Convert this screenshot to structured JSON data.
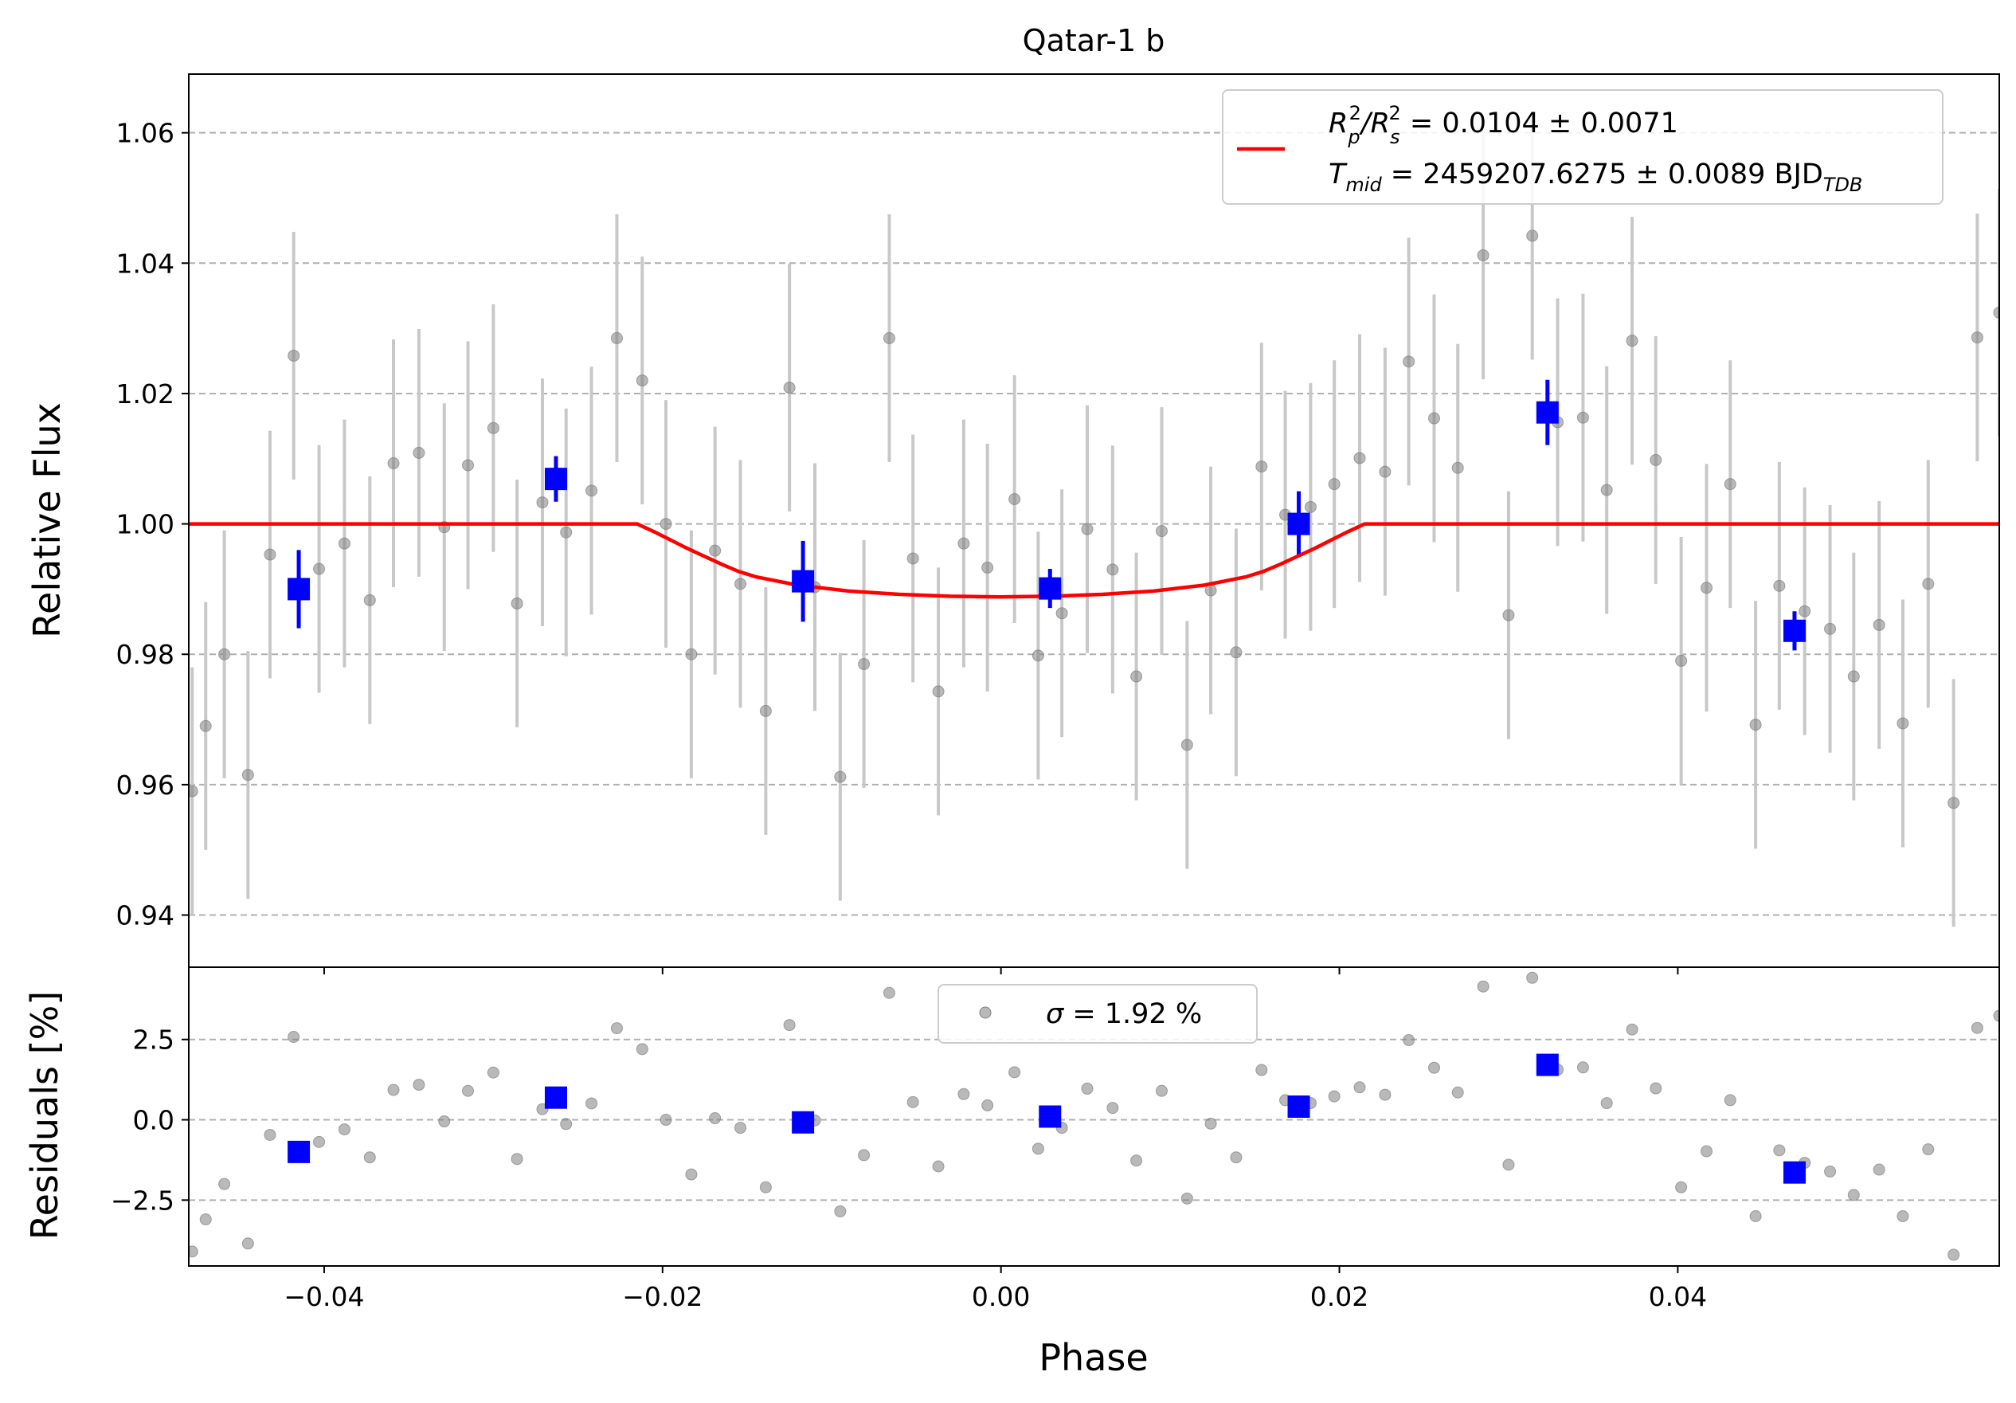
{
  "chart_data": [
    {
      "type": "scatter",
      "panel": "flux",
      "title": "Qatar-1 b",
      "xlabel": "",
      "ylabel": "Relative Flux",
      "xlim": [
        -0.048,
        0.059
      ],
      "ylim": [
        0.932,
        1.069
      ],
      "yticks": [
        0.94,
        0.96,
        0.98,
        1.0,
        1.02,
        1.04,
        1.06
      ],
      "ytick_labels": [
        "0.94",
        "0.96",
        "0.98",
        "1.00",
        "1.02",
        "1.04",
        "1.06"
      ],
      "grid": "horizontal dashed",
      "legend": {
        "placement": "top-right",
        "line_color": "#ff0000",
        "line1_text": [
          "R",
          "p",
          "2",
          "/R",
          "s",
          "2",
          " = 0.0104 ± 0.0071"
        ],
        "line2_text": [
          "T",
          "mid",
          " = 2459207.6275 ± 0.0089 BJD",
          "TDB"
        ]
      },
      "colors": {
        "raw": "#808080",
        "raw_err": "#c8c8c8",
        "binned": "#0000ff",
        "model": "#ff0000"
      },
      "raw": [
        [
          -0.0478,
          0.959,
          0.019
        ],
        [
          -0.047,
          0.969,
          0.019
        ],
        [
          -0.0459,
          0.98,
          0.019
        ],
        [
          -0.0445,
          0.9615,
          0.019
        ],
        [
          -0.0432,
          0.9953,
          0.019
        ],
        [
          -0.0418,
          1.0258,
          0.019
        ],
        [
          -0.0403,
          0.9931,
          0.019
        ],
        [
          -0.0388,
          0.997,
          0.019
        ],
        [
          -0.0373,
          0.9883,
          0.019
        ],
        [
          -0.0359,
          1.0093,
          0.019
        ],
        [
          -0.0344,
          1.0109,
          0.019
        ],
        [
          -0.0329,
          0.9995,
          0.019
        ],
        [
          -0.0315,
          1.009,
          0.019
        ],
        [
          -0.03,
          1.0147,
          0.019
        ],
        [
          -0.0286,
          0.9878,
          0.019
        ],
        [
          -0.0271,
          1.0033,
          0.019
        ],
        [
          -0.0257,
          0.9987,
          0.019
        ],
        [
          -0.0242,
          1.0051,
          0.019
        ],
        [
          -0.0227,
          1.0285,
          0.019
        ],
        [
          -0.0212,
          1.022,
          0.019
        ],
        [
          -0.0198,
          1.0,
          0.019
        ],
        [
          -0.0183,
          0.98,
          0.019
        ],
        [
          -0.0169,
          0.9959,
          0.019
        ],
        [
          -0.0154,
          0.9908,
          0.019
        ],
        [
          -0.0139,
          0.9713,
          0.019
        ],
        [
          -0.0125,
          1.0209,
          0.019
        ],
        [
          -0.011,
          0.9903,
          0.019
        ],
        [
          -0.0095,
          0.9612,
          0.019
        ],
        [
          -0.0081,
          0.9785,
          0.019
        ],
        [
          -0.0066,
          1.0285,
          0.019
        ],
        [
          -0.0052,
          0.9947,
          0.019
        ],
        [
          -0.0037,
          0.9743,
          0.019
        ],
        [
          -0.0022,
          0.997,
          0.019
        ],
        [
          -0.0008,
          0.9933,
          0.019
        ],
        [
          0.0008,
          1.0038,
          0.019
        ],
        [
          0.0022,
          0.9798,
          0.019
        ],
        [
          0.0036,
          0.9863,
          0.019
        ],
        [
          0.0051,
          0.9992,
          0.019
        ],
        [
          0.0066,
          0.993,
          0.019
        ],
        [
          0.008,
          0.9766,
          0.019
        ],
        [
          0.0095,
          0.9989,
          0.019
        ],
        [
          0.011,
          0.9661,
          0.019
        ],
        [
          0.0124,
          0.9898,
          0.019
        ],
        [
          0.0139,
          0.9803,
          0.019
        ],
        [
          0.0154,
          1.0088,
          0.019
        ],
        [
          0.0168,
          1.0014,
          0.019
        ],
        [
          0.0183,
          1.0026,
          0.019
        ],
        [
          0.0197,
          1.0061,
          0.019
        ],
        [
          0.0212,
          1.0101,
          0.019
        ],
        [
          0.0227,
          1.008,
          0.019
        ],
        [
          0.0241,
          1.0249,
          0.019
        ],
        [
          0.0256,
          1.0162,
          0.019
        ],
        [
          0.027,
          1.0086,
          0.019
        ],
        [
          0.0285,
          1.0412,
          0.019
        ],
        [
          0.03,
          0.986,
          0.019
        ],
        [
          0.0314,
          1.0442,
          0.019
        ],
        [
          0.0329,
          1.0156,
          0.019
        ],
        [
          0.0344,
          1.0163,
          0.019
        ],
        [
          0.0358,
          1.0052,
          0.019
        ],
        [
          0.0373,
          1.0281,
          0.019
        ],
        [
          0.0387,
          1.0098,
          0.019
        ],
        [
          0.0402,
          0.979,
          0.019
        ],
        [
          0.0417,
          0.9902,
          0.019
        ],
        [
          0.0431,
          1.0061,
          0.019
        ],
        [
          0.0446,
          0.9692,
          0.019
        ],
        [
          0.046,
          0.9905,
          0.019
        ],
        [
          0.0475,
          0.9866,
          0.019
        ],
        [
          0.049,
          0.9839,
          0.019
        ],
        [
          0.0504,
          0.9766,
          0.019
        ],
        [
          0.0519,
          0.9845,
          0.019
        ],
        [
          0.0533,
          0.9694,
          0.019
        ],
        [
          0.0548,
          0.9908,
          0.019
        ],
        [
          0.0563,
          0.9572,
          0.019
        ],
        [
          0.0577,
          1.0286,
          0.019
        ],
        [
          0.059,
          1.0324,
          0.019
        ]
      ],
      "binned": [
        [
          -0.0415,
          0.99,
          0.006
        ],
        [
          -0.0263,
          1.0069,
          0.0035
        ],
        [
          -0.0117,
          0.9912,
          0.0062
        ],
        [
          0.0029,
          0.9901,
          0.003
        ],
        [
          0.0176,
          1.0,
          0.005
        ],
        [
          0.0323,
          1.0171,
          0.005
        ],
        [
          0.0469,
          0.9836,
          0.003
        ]
      ],
      "model": [
        [
          -0.048,
          1.0
        ],
        [
          -0.0215,
          1.0
        ],
        [
          -0.0205,
          0.9988
        ],
        [
          -0.0195,
          0.9975
        ],
        [
          -0.0185,
          0.9962
        ],
        [
          -0.0175,
          0.995
        ],
        [
          -0.0165,
          0.9938
        ],
        [
          -0.0155,
          0.9927
        ],
        [
          -0.0145,
          0.9919
        ],
        [
          -0.012,
          0.9906
        ],
        [
          -0.009,
          0.9897
        ],
        [
          -0.006,
          0.9892
        ],
        [
          -0.003,
          0.9889
        ],
        [
          0.0,
          0.9888
        ],
        [
          0.003,
          0.9889
        ],
        [
          0.006,
          0.9892
        ],
        [
          0.009,
          0.9897
        ],
        [
          0.012,
          0.9906
        ],
        [
          0.0145,
          0.9919
        ],
        [
          0.0155,
          0.9927
        ],
        [
          0.0165,
          0.9938
        ],
        [
          0.0175,
          0.995
        ],
        [
          0.0185,
          0.9962
        ],
        [
          0.0195,
          0.9975
        ],
        [
          0.0205,
          0.9988
        ],
        [
          0.0215,
          1.0
        ],
        [
          0.059,
          1.0
        ]
      ]
    },
    {
      "type": "scatter",
      "panel": "residuals",
      "xlabel": "Phase",
      "ylabel": "Residuals [%]",
      "xlim": [
        -0.048,
        0.059
      ],
      "ylim": [
        -4.55,
        4.75
      ],
      "xticks": [
        -0.04,
        -0.02,
        0.0,
        0.02,
        0.04
      ],
      "xtick_labels": [
        "−0.04",
        "−0.02",
        "0.00",
        "0.02",
        "0.04"
      ],
      "yticks": [
        -2.5,
        0.0,
        2.5
      ],
      "ytick_labels": [
        "−2.5",
        "0.0",
        "2.5"
      ],
      "grid": "horizontal dashed",
      "legend": {
        "placement": "top-center",
        "text": [
          "σ",
          " = 1.92 %"
        ]
      },
      "raw": [
        [
          -0.0478,
          -4.1
        ],
        [
          -0.047,
          -3.1
        ],
        [
          -0.0459,
          -2.0
        ],
        [
          -0.0445,
          -3.85
        ],
        [
          -0.0432,
          -0.47
        ],
        [
          -0.0418,
          2.58
        ],
        [
          -0.0403,
          -0.69
        ],
        [
          -0.0388,
          -0.3
        ],
        [
          -0.0373,
          -1.17
        ],
        [
          -0.0359,
          0.93
        ],
        [
          -0.0344,
          1.09
        ],
        [
          -0.0329,
          -0.05
        ],
        [
          -0.0315,
          0.9
        ],
        [
          -0.03,
          1.47
        ],
        [
          -0.0286,
          -1.22
        ],
        [
          -0.0271,
          0.33
        ],
        [
          -0.0257,
          -0.13
        ],
        [
          -0.0242,
          0.51
        ],
        [
          -0.0227,
          2.85
        ],
        [
          -0.0212,
          2.2
        ],
        [
          -0.0198,
          0.0
        ],
        [
          -0.0183,
          -1.7
        ],
        [
          -0.0169,
          0.05
        ],
        [
          -0.0154,
          -0.25
        ],
        [
          -0.0139,
          -2.1
        ],
        [
          -0.0125,
          2.95
        ],
        [
          -0.011,
          -0.02
        ],
        [
          -0.0095,
          -2.85
        ],
        [
          -0.0081,
          -1.1
        ],
        [
          -0.0066,
          3.95
        ],
        [
          -0.0052,
          0.55
        ],
        [
          -0.0037,
          -1.45
        ],
        [
          -0.0022,
          0.8
        ],
        [
          -0.0008,
          0.45
        ],
        [
          0.0008,
          1.48
        ],
        [
          0.0022,
          -0.9
        ],
        [
          0.0036,
          -0.25
        ],
        [
          0.0051,
          0.97
        ],
        [
          0.0066,
          0.37
        ],
        [
          0.008,
          -1.27
        ],
        [
          0.0095,
          0.9
        ],
        [
          0.011,
          -2.45
        ],
        [
          0.0124,
          -0.12
        ],
        [
          0.0139,
          -1.17
        ],
        [
          0.0154,
          1.55
        ],
        [
          0.0168,
          0.61
        ],
        [
          0.0183,
          0.52
        ],
        [
          0.0197,
          0.73
        ],
        [
          0.0212,
          1.01
        ],
        [
          0.0227,
          0.78
        ],
        [
          0.0241,
          2.48
        ],
        [
          0.0256,
          1.62
        ],
        [
          0.027,
          0.85
        ],
        [
          0.0285,
          4.15
        ],
        [
          0.03,
          -1.4
        ],
        [
          0.0314,
          4.42
        ],
        [
          0.0329,
          1.56
        ],
        [
          0.0344,
          1.63
        ],
        [
          0.0358,
          0.52
        ],
        [
          0.0373,
          2.81
        ],
        [
          0.0387,
          0.98
        ],
        [
          0.0402,
          -2.1
        ],
        [
          0.0417,
          -0.98
        ],
        [
          0.0431,
          0.61
        ],
        [
          0.0446,
          -3.0
        ],
        [
          0.046,
          -0.95
        ],
        [
          0.0475,
          -1.34
        ],
        [
          0.049,
          -1.61
        ],
        [
          0.0504,
          -2.34
        ],
        [
          0.0519,
          -1.55
        ],
        [
          0.0533,
          -3.0
        ],
        [
          0.0548,
          -0.92
        ],
        [
          0.0563,
          -4.2
        ],
        [
          0.0577,
          2.86
        ],
        [
          0.059,
          3.24
        ]
      ],
      "binned": [
        [
          -0.0415,
          -1.0
        ],
        [
          -0.0263,
          0.69
        ],
        [
          -0.0117,
          -0.08
        ],
        [
          0.0029,
          0.1
        ],
        [
          0.0176,
          0.41
        ],
        [
          0.0323,
          1.71
        ],
        [
          0.0469,
          -1.64
        ]
      ]
    }
  ]
}
